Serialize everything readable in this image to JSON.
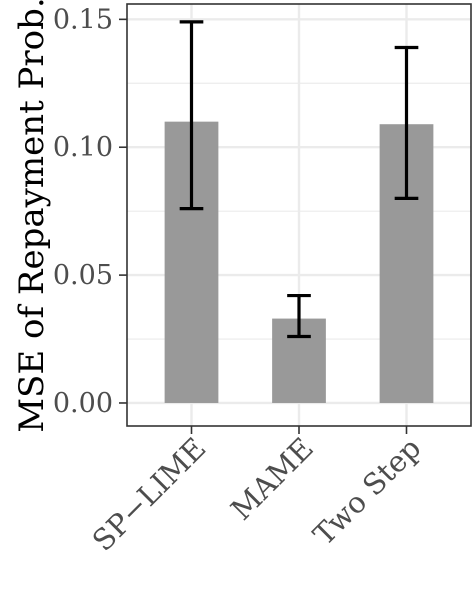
{
  "chart_data": {
    "type": "bar",
    "title": "",
    "xlabel": "",
    "ylabel": "MSE of Repayment Prob.",
    "categories": [
      "SP−LIME",
      "MAME",
      "Two Step"
    ],
    "values": [
      0.11,
      0.033,
      0.109
    ],
    "error_low": [
      0.076,
      0.026,
      0.08
    ],
    "error_high": [
      0.149,
      0.042,
      0.139
    ],
    "ylim": [
      -0.009,
      0.156
    ],
    "yticks": [
      0.0,
      0.05,
      0.1,
      0.15
    ],
    "ytick_labels": [
      "0.00",
      "0.05",
      "0.10",
      "0.15"
    ],
    "grid": true,
    "colors": {
      "bar": "#999999",
      "grid": "#ebebeb",
      "error_bar": "#000000"
    }
  }
}
